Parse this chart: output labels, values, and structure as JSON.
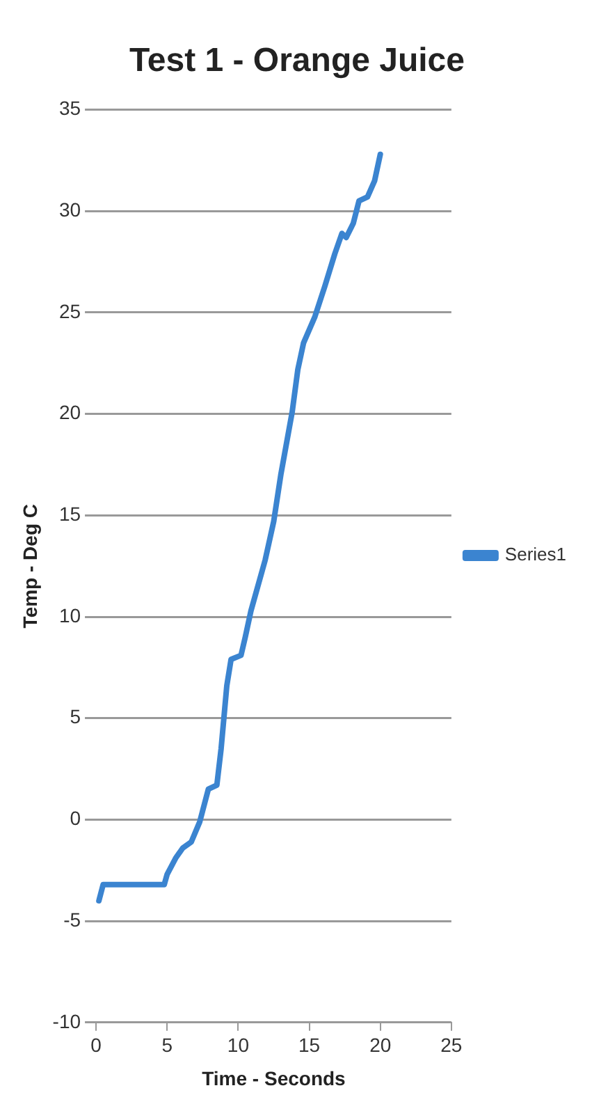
{
  "chart_data": {
    "type": "line",
    "title": "Test 1 - Orange Juice",
    "xlabel": "Time - Seconds",
    "ylabel": "Temp - Deg C",
    "xlim": [
      0,
      25
    ],
    "xticks": [
      0,
      5,
      10,
      15,
      20,
      25
    ],
    "ylim": [
      -10,
      35
    ],
    "yticks": [
      -10,
      -5,
      0,
      5,
      10,
      15,
      20,
      25,
      30,
      35
    ],
    "grid": "y",
    "legend": "right",
    "marker": "none",
    "line_style": "solid",
    "series": [
      {
        "name": "Series1",
        "color": "#3b84d0",
        "x": [
          0.2,
          0.5,
          2.5,
          4.8,
          5,
          5.6,
          6.1,
          6.7,
          7.3,
          7.9,
          8.5,
          8.8,
          9.2,
          9.5,
          10.2,
          10.5,
          10.9,
          11.5,
          11.9,
          12.5,
          13,
          13.8,
          14.2,
          14.6,
          15.4,
          16.1,
          16.8,
          17.3,
          17.6,
          18.1,
          18.5,
          19.1,
          19.6,
          20
        ],
        "values": [
          -4,
          -3.2,
          -3.2,
          -3.2,
          -2.7,
          -1.9,
          -1.4,
          -1.1,
          -0.1,
          1.5,
          1.7,
          3.5,
          6.6,
          7.9,
          8.1,
          9,
          10.3,
          11.8,
          12.8,
          14.7,
          17,
          20.1,
          22.2,
          23.5,
          24.8,
          26.3,
          27.9,
          28.9,
          28.7,
          29.4,
          30.5,
          30.7,
          31.5,
          32.8
        ]
      }
    ]
  }
}
